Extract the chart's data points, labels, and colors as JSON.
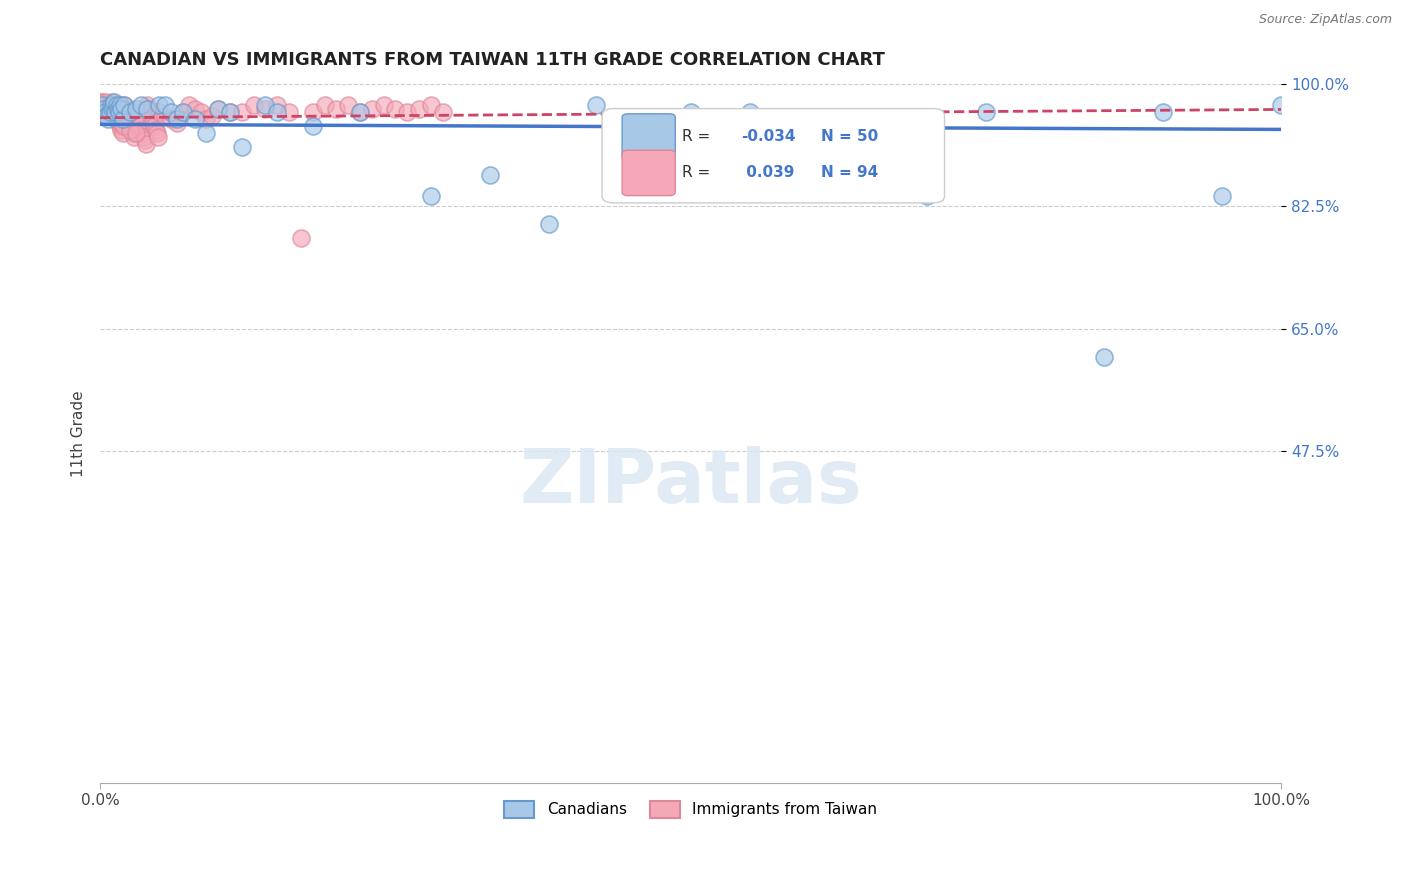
{
  "title": "CANADIAN VS IMMIGRANTS FROM TAIWAN 11TH GRADE CORRELATION CHART",
  "source_text": "Source: ZipAtlas.com",
  "ylabel": "11th Grade",
  "xlim": [
    0,
    1.0
  ],
  "ylim": [
    0,
    1.0
  ],
  "yticks": [
    0.475,
    0.65,
    0.825,
    1.0
  ],
  "ytick_labels": [
    "47.5%",
    "65.0%",
    "82.5%",
    "100.0%"
  ],
  "xticks": [
    0.0,
    1.0
  ],
  "xtick_labels": [
    "0.0%",
    "100.0%"
  ],
  "blue_R": -0.034,
  "blue_N": 50,
  "pink_R": 0.039,
  "pink_N": 94,
  "blue_color": "#A8C8E8",
  "pink_color": "#F4A8B8",
  "blue_edge_color": "#6699CC",
  "pink_edge_color": "#DD8899",
  "blue_line_color": "#4477CC",
  "pink_line_color": "#CC4466",
  "legend_blue_label": "Canadians",
  "legend_pink_label": "Immigrants from Taiwan",
  "watermark": "ZIPatlas",
  "blue_scatter_x": [
    0.002,
    0.003,
    0.004,
    0.005,
    0.006,
    0.007,
    0.008,
    0.009,
    0.01,
    0.011,
    0.012,
    0.013,
    0.014,
    0.015,
    0.016,
    0.017,
    0.018,
    0.019,
    0.02,
    0.025,
    0.03,
    0.035,
    0.04,
    0.05,
    0.055,
    0.06,
    0.065,
    0.07,
    0.08,
    0.09,
    0.1,
    0.11,
    0.12,
    0.14,
    0.15,
    0.18,
    0.22,
    0.28,
    0.33,
    0.38,
    0.42,
    0.5,
    0.55,
    0.62,
    0.7,
    0.75,
    0.85,
    0.9,
    0.95,
    1.0
  ],
  "blue_scatter_y": [
    0.97,
    0.965,
    0.96,
    0.955,
    0.955,
    0.95,
    0.96,
    0.97,
    0.965,
    0.97,
    0.975,
    0.96,
    0.97,
    0.965,
    0.96,
    0.97,
    0.965,
    0.95,
    0.97,
    0.96,
    0.965,
    0.97,
    0.965,
    0.97,
    0.97,
    0.96,
    0.95,
    0.96,
    0.95,
    0.93,
    0.965,
    0.96,
    0.91,
    0.97,
    0.96,
    0.94,
    0.96,
    0.84,
    0.87,
    0.8,
    0.97,
    0.96,
    0.96,
    0.95,
    0.84,
    0.96,
    0.61,
    0.96,
    0.84,
    0.97
  ],
  "pink_scatter_x": [
    0.001,
    0.002,
    0.003,
    0.004,
    0.005,
    0.006,
    0.007,
    0.008,
    0.009,
    0.01,
    0.01,
    0.011,
    0.012,
    0.013,
    0.014,
    0.015,
    0.016,
    0.017,
    0.018,
    0.019,
    0.02,
    0.021,
    0.022,
    0.023,
    0.024,
    0.025,
    0.026,
    0.027,
    0.028,
    0.029,
    0.03,
    0.031,
    0.032,
    0.033,
    0.034,
    0.035,
    0.036,
    0.037,
    0.038,
    0.039,
    0.04,
    0.041,
    0.042,
    0.043,
    0.044,
    0.045,
    0.046,
    0.047,
    0.048,
    0.049,
    0.05,
    0.055,
    0.06,
    0.065,
    0.07,
    0.075,
    0.08,
    0.085,
    0.09,
    0.095,
    0.1,
    0.11,
    0.12,
    0.13,
    0.14,
    0.15,
    0.16,
    0.17,
    0.18,
    0.19,
    0.2,
    0.21,
    0.22,
    0.23,
    0.24,
    0.25,
    0.26,
    0.27,
    0.28,
    0.29,
    0.002,
    0.004,
    0.006,
    0.008,
    0.012,
    0.015,
    0.018,
    0.02,
    0.025,
    0.03,
    0.005,
    0.007,
    0.009,
    0.011
  ],
  "pink_scatter_y": [
    0.975,
    0.97,
    0.968,
    0.965,
    0.965,
    0.962,
    0.96,
    0.958,
    0.955,
    0.953,
    0.975,
    0.97,
    0.965,
    0.96,
    0.955,
    0.95,
    0.945,
    0.94,
    0.935,
    0.93,
    0.97,
    0.965,
    0.96,
    0.955,
    0.95,
    0.945,
    0.94,
    0.935,
    0.93,
    0.925,
    0.96,
    0.955,
    0.95,
    0.945,
    0.94,
    0.935,
    0.93,
    0.925,
    0.92,
    0.915,
    0.97,
    0.965,
    0.96,
    0.955,
    0.95,
    0.945,
    0.94,
    0.935,
    0.93,
    0.925,
    0.96,
    0.955,
    0.95,
    0.945,
    0.96,
    0.97,
    0.965,
    0.96,
    0.95,
    0.955,
    0.965,
    0.96,
    0.96,
    0.97,
    0.965,
    0.97,
    0.96,
    0.78,
    0.96,
    0.97,
    0.965,
    0.97,
    0.96,
    0.965,
    0.97,
    0.965,
    0.96,
    0.965,
    0.97,
    0.96,
    0.975,
    0.97,
    0.965,
    0.96,
    0.955,
    0.95,
    0.945,
    0.94,
    0.935,
    0.93,
    0.975,
    0.97,
    0.965,
    0.96
  ]
}
